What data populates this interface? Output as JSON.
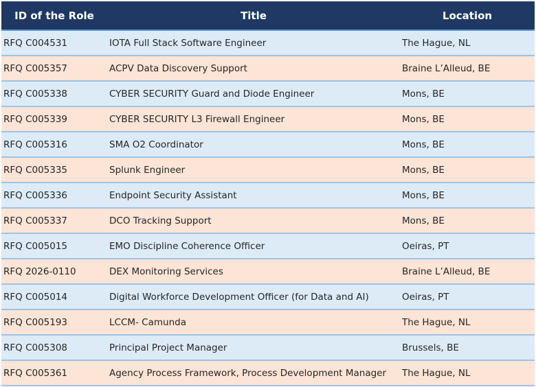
{
  "table": {
    "headers": {
      "id": "ID of the Role",
      "title": "Title",
      "location": "Location"
    },
    "rows": [
      {
        "id": "RFQ C004531",
        "title": "IOTA Full Stack Software Engineer",
        "location": "The Hague, NL"
      },
      {
        "id": "RFQ C005357",
        "title": "ACPV Data Discovery Support",
        "location": "Braine L’Alleud, BE"
      },
      {
        "id": "RFQ C005338",
        "title": "CYBER SECURITY Guard and Diode Engineer",
        "location": "Mons, BE"
      },
      {
        "id": "RFQ C005339",
        "title": "CYBER SECURITY L3 Firewall Engineer",
        "location": "Mons, BE"
      },
      {
        "id": "RFQ C005316",
        "title": "SMA O2 Coordinator",
        "location": "Mons, BE"
      },
      {
        "id": "RFQ C005335",
        "title": "Splunk Engineer",
        "location": "Mons, BE"
      },
      {
        "id": "RFQ C005336",
        "title": "Endpoint Security Assistant",
        "location": "Mons, BE"
      },
      {
        "id": "RFQ C005337",
        "title": "DCO Tracking Support",
        "location": "Mons, BE"
      },
      {
        "id": "RFQ C005015",
        "title": "EMO Discipline Coherence Officer",
        "location": "Oeiras, PT"
      },
      {
        "id": "RFQ 2026-0110",
        "title": "DEX Monitoring Services",
        "location": "Braine L’Alleud, BE"
      },
      {
        "id": "RFQ C005014",
        "title": "Digital Workforce Development Officer (for Data and AI)",
        "location": "Oeiras, PT"
      },
      {
        "id": "RFQ C005193",
        "title": "LCCM- Camunda",
        "location": "The Hague, NL"
      },
      {
        "id": "RFQ C005308",
        "title": "Principal Project Manager",
        "location": "Brussels, BE"
      },
      {
        "id": "RFQ C005361",
        "title": "Agency Process Framework, Process Development Manager",
        "location": "The Hague, NL"
      }
    ]
  },
  "colors": {
    "header_bg": "#1f3864",
    "row_blue": "#ddebf7",
    "row_peach": "#fce4d6"
  }
}
